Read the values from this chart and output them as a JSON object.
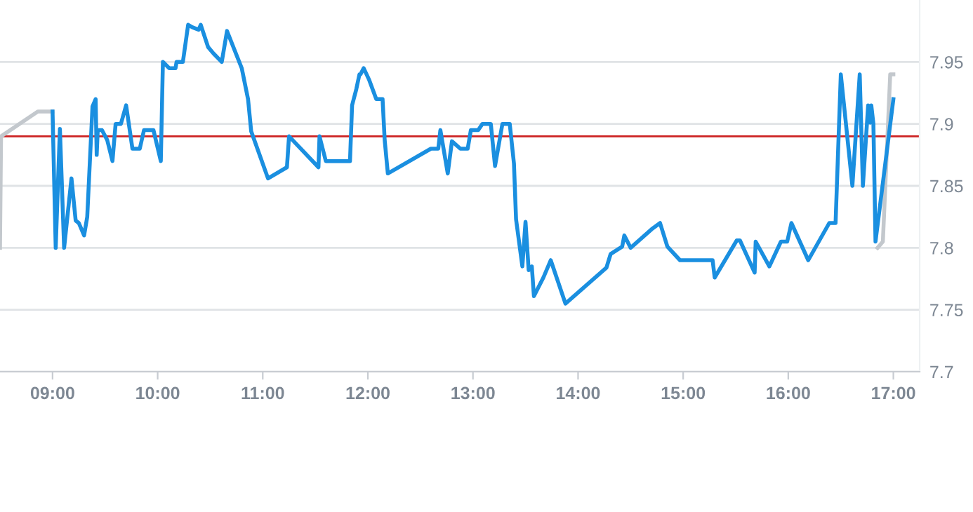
{
  "chart_data": {
    "type": "line",
    "xlim": [
      8.5,
      17.25
    ],
    "ylim": [
      7.7,
      8.0
    ],
    "xticks": [
      {
        "value": 9,
        "label": "09:00"
      },
      {
        "value": 10,
        "label": "10:00"
      },
      {
        "value": 11,
        "label": "11:00"
      },
      {
        "value": 12,
        "label": "12:00"
      },
      {
        "value": 13,
        "label": "13:00"
      },
      {
        "value": 14,
        "label": "14:00"
      },
      {
        "value": 15,
        "label": "15:00"
      },
      {
        "value": 16,
        "label": "16:00"
      },
      {
        "value": 17,
        "label": "17:00"
      }
    ],
    "yticks": [
      7.7,
      7.75,
      7.8,
      7.85,
      7.9,
      7.95
    ],
    "grid": "y",
    "marker": "none",
    "line_style": "solid",
    "ref_lines": [
      {
        "axis": "y",
        "value": 7.89,
        "color": "#cc2222"
      }
    ],
    "series": [
      {
        "color": "#c3c8cd",
        "x": [
          8.5,
          8.51,
          8.86,
          9.0,
          null,
          16.85,
          16.9,
          16.97,
          17.0
        ],
        "values": [
          7.8,
          7.89,
          7.91,
          7.91,
          null,
          7.8,
          7.805,
          7.94,
          7.94
        ]
      },
      {
        "color": "#1a8fe0",
        "x": [
          9.0,
          9.03,
          9.07,
          9.11,
          9.18,
          9.22,
          9.25,
          9.3,
          9.33,
          9.38,
          9.41,
          9.42,
          9.43,
          9.47,
          9.52,
          9.57,
          9.6,
          9.65,
          9.7,
          9.76,
          9.83,
          9.87,
          9.96,
          10.03,
          10.05,
          10.11,
          10.17,
          10.18,
          10.24,
          10.29,
          10.33,
          10.39,
          10.41,
          10.48,
          10.53,
          10.61,
          10.66,
          10.8,
          10.86,
          10.89,
          11.05,
          11.23,
          11.25,
          11.53,
          11.54,
          11.6,
          11.83,
          11.85,
          11.89,
          11.92,
          11.93,
          11.96,
          12.01,
          12.08,
          12.14,
          12.16,
          12.19,
          12.6,
          12.67,
          12.69,
          12.76,
          12.8,
          12.88,
          12.95,
          12.98,
          13.05,
          13.09,
          13.17,
          13.21,
          13.28,
          13.35,
          13.39,
          13.41,
          13.47,
          13.5,
          13.53,
          13.56,
          13.58,
          13.67,
          13.74,
          13.88,
          14.27,
          14.31,
          14.42,
          14.44,
          14.5,
          14.7,
          14.78,
          14.85,
          14.97,
          15.28,
          15.3,
          15.51,
          15.54,
          15.68,
          15.69,
          15.82,
          15.93,
          15.99,
          16.03,
          16.19,
          16.39,
          16.45,
          16.5,
          16.61,
          16.68,
          16.71,
          16.76,
          16.78,
          16.79,
          16.81,
          16.83,
          17.0
        ],
        "values": [
          7.91,
          7.8,
          7.896,
          7.8,
          7.856,
          7.822,
          7.82,
          7.81,
          7.825,
          7.914,
          7.92,
          7.875,
          7.895,
          7.895,
          7.887,
          7.87,
          7.9,
          7.9,
          7.915,
          7.88,
          7.88,
          7.895,
          7.895,
          7.87,
          7.95,
          7.945,
          7.945,
          7.95,
          7.95,
          7.98,
          7.978,
          7.976,
          7.98,
          7.962,
          7.957,
          7.95,
          7.975,
          7.945,
          7.92,
          7.894,
          7.856,
          7.865,
          7.89,
          7.865,
          7.89,
          7.87,
          7.87,
          7.915,
          7.928,
          7.94,
          7.94,
          7.945,
          7.936,
          7.92,
          7.92,
          7.887,
          7.86,
          7.88,
          7.88,
          7.895,
          7.86,
          7.886,
          7.88,
          7.88,
          7.895,
          7.895,
          7.9,
          7.9,
          7.866,
          7.9,
          7.9,
          7.868,
          7.823,
          7.785,
          7.821,
          7.782,
          7.785,
          7.761,
          7.776,
          7.79,
          7.755,
          7.784,
          7.795,
          7.801,
          7.81,
          7.8,
          7.815,
          7.82,
          7.801,
          7.79,
          7.79,
          7.776,
          7.806,
          7.806,
          7.78,
          7.805,
          7.785,
          7.805,
          7.805,
          7.82,
          7.79,
          7.82,
          7.82,
          7.94,
          7.85,
          7.94,
          7.85,
          7.915,
          7.901,
          7.915,
          7.9,
          7.805,
          7.92
        ]
      }
    ]
  }
}
